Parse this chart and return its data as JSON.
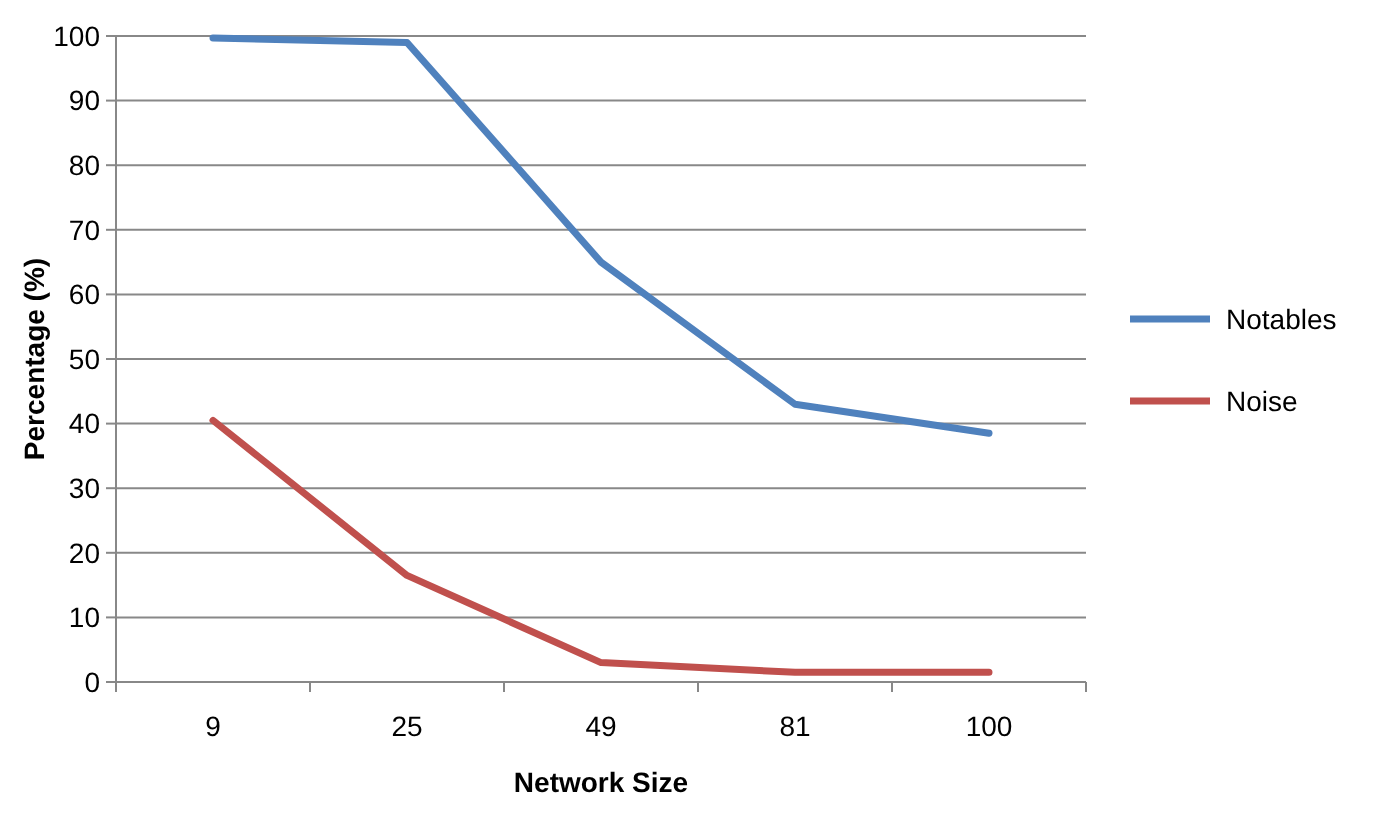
{
  "chart_data": {
    "type": "line",
    "xlabel": "Network Size",
    "ylabel": "Percentage (%)",
    "categories": [
      "9",
      "25",
      "49",
      "81",
      "100"
    ],
    "series": [
      {
        "name": "Notables",
        "color": "#4f81bd",
        "values": [
          99.7,
          99,
          65,
          43,
          38.5
        ]
      },
      {
        "name": "Noise",
        "color": "#c0504d",
        "values": [
          40.5,
          16.5,
          3,
          1.5,
          1.5
        ]
      }
    ],
    "ylim": [
      0,
      100
    ],
    "yticks": [
      0,
      10,
      20,
      30,
      40,
      50,
      60,
      70,
      80,
      90,
      100
    ],
    "grid": "y",
    "legend": "right",
    "marker": "none",
    "line_style": "solid"
  }
}
